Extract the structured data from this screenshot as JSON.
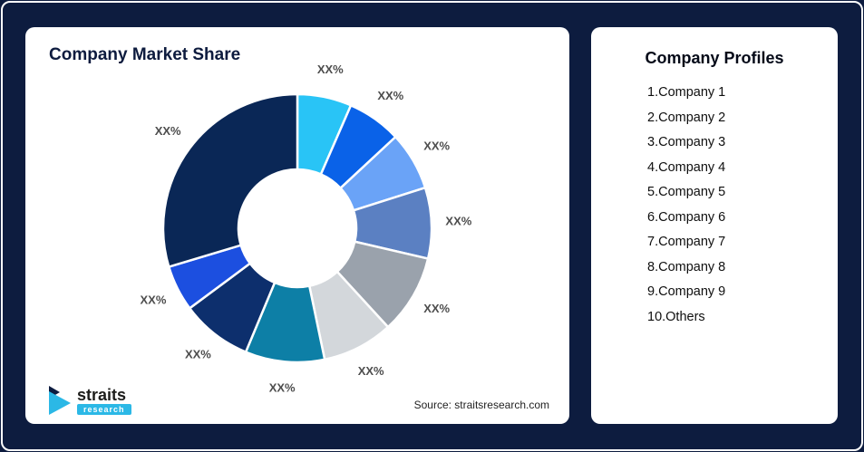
{
  "frame": {
    "background": "#0d1c3f",
    "border": "#ffffff"
  },
  "left": {
    "title": "Company Market Share",
    "source": "Source: straitsresearch.com",
    "logo": {
      "brand": "straits",
      "sub": "research"
    }
  },
  "right": {
    "title": "Company Profiles",
    "items": [
      "1.Company 1",
      "2.Company 2",
      "3.Company 3",
      "4.Company 4",
      "5.Company 5",
      "6.Company 6",
      "7.Company 7",
      "8.Company 8",
      "9.Company 9",
      "10.Others"
    ]
  },
  "chart_data": {
    "type": "pie",
    "donut": true,
    "title": "Company Market Share",
    "categories": [
      "Company 1",
      "Company 2",
      "Company 3",
      "Company 4",
      "Company 5",
      "Company 6",
      "Company 7",
      "Company 8",
      "Company 9",
      "Others"
    ],
    "values": [
      6.5,
      6.5,
      7,
      8.5,
      9.5,
      8.5,
      9.5,
      8.5,
      5.5,
      29.5
    ],
    "labels": [
      "XX%",
      "XX%",
      "XX%",
      "XX%",
      "XX%",
      "XX%",
      "XX%",
      "XX%",
      "XX%",
      "XX%"
    ],
    "colors": [
      "#29c4f6",
      "#0a62e8",
      "#6aa3f7",
      "#5b80c2",
      "#9aa2ac",
      "#d3d7db",
      "#0d7fa6",
      "#0d2f6d",
      "#1c4fe0",
      "#0a2756"
    ],
    "slice_label_color": "#4d4d4d",
    "legend_position": "none",
    "source": "Source: straitsresearch.com"
  }
}
